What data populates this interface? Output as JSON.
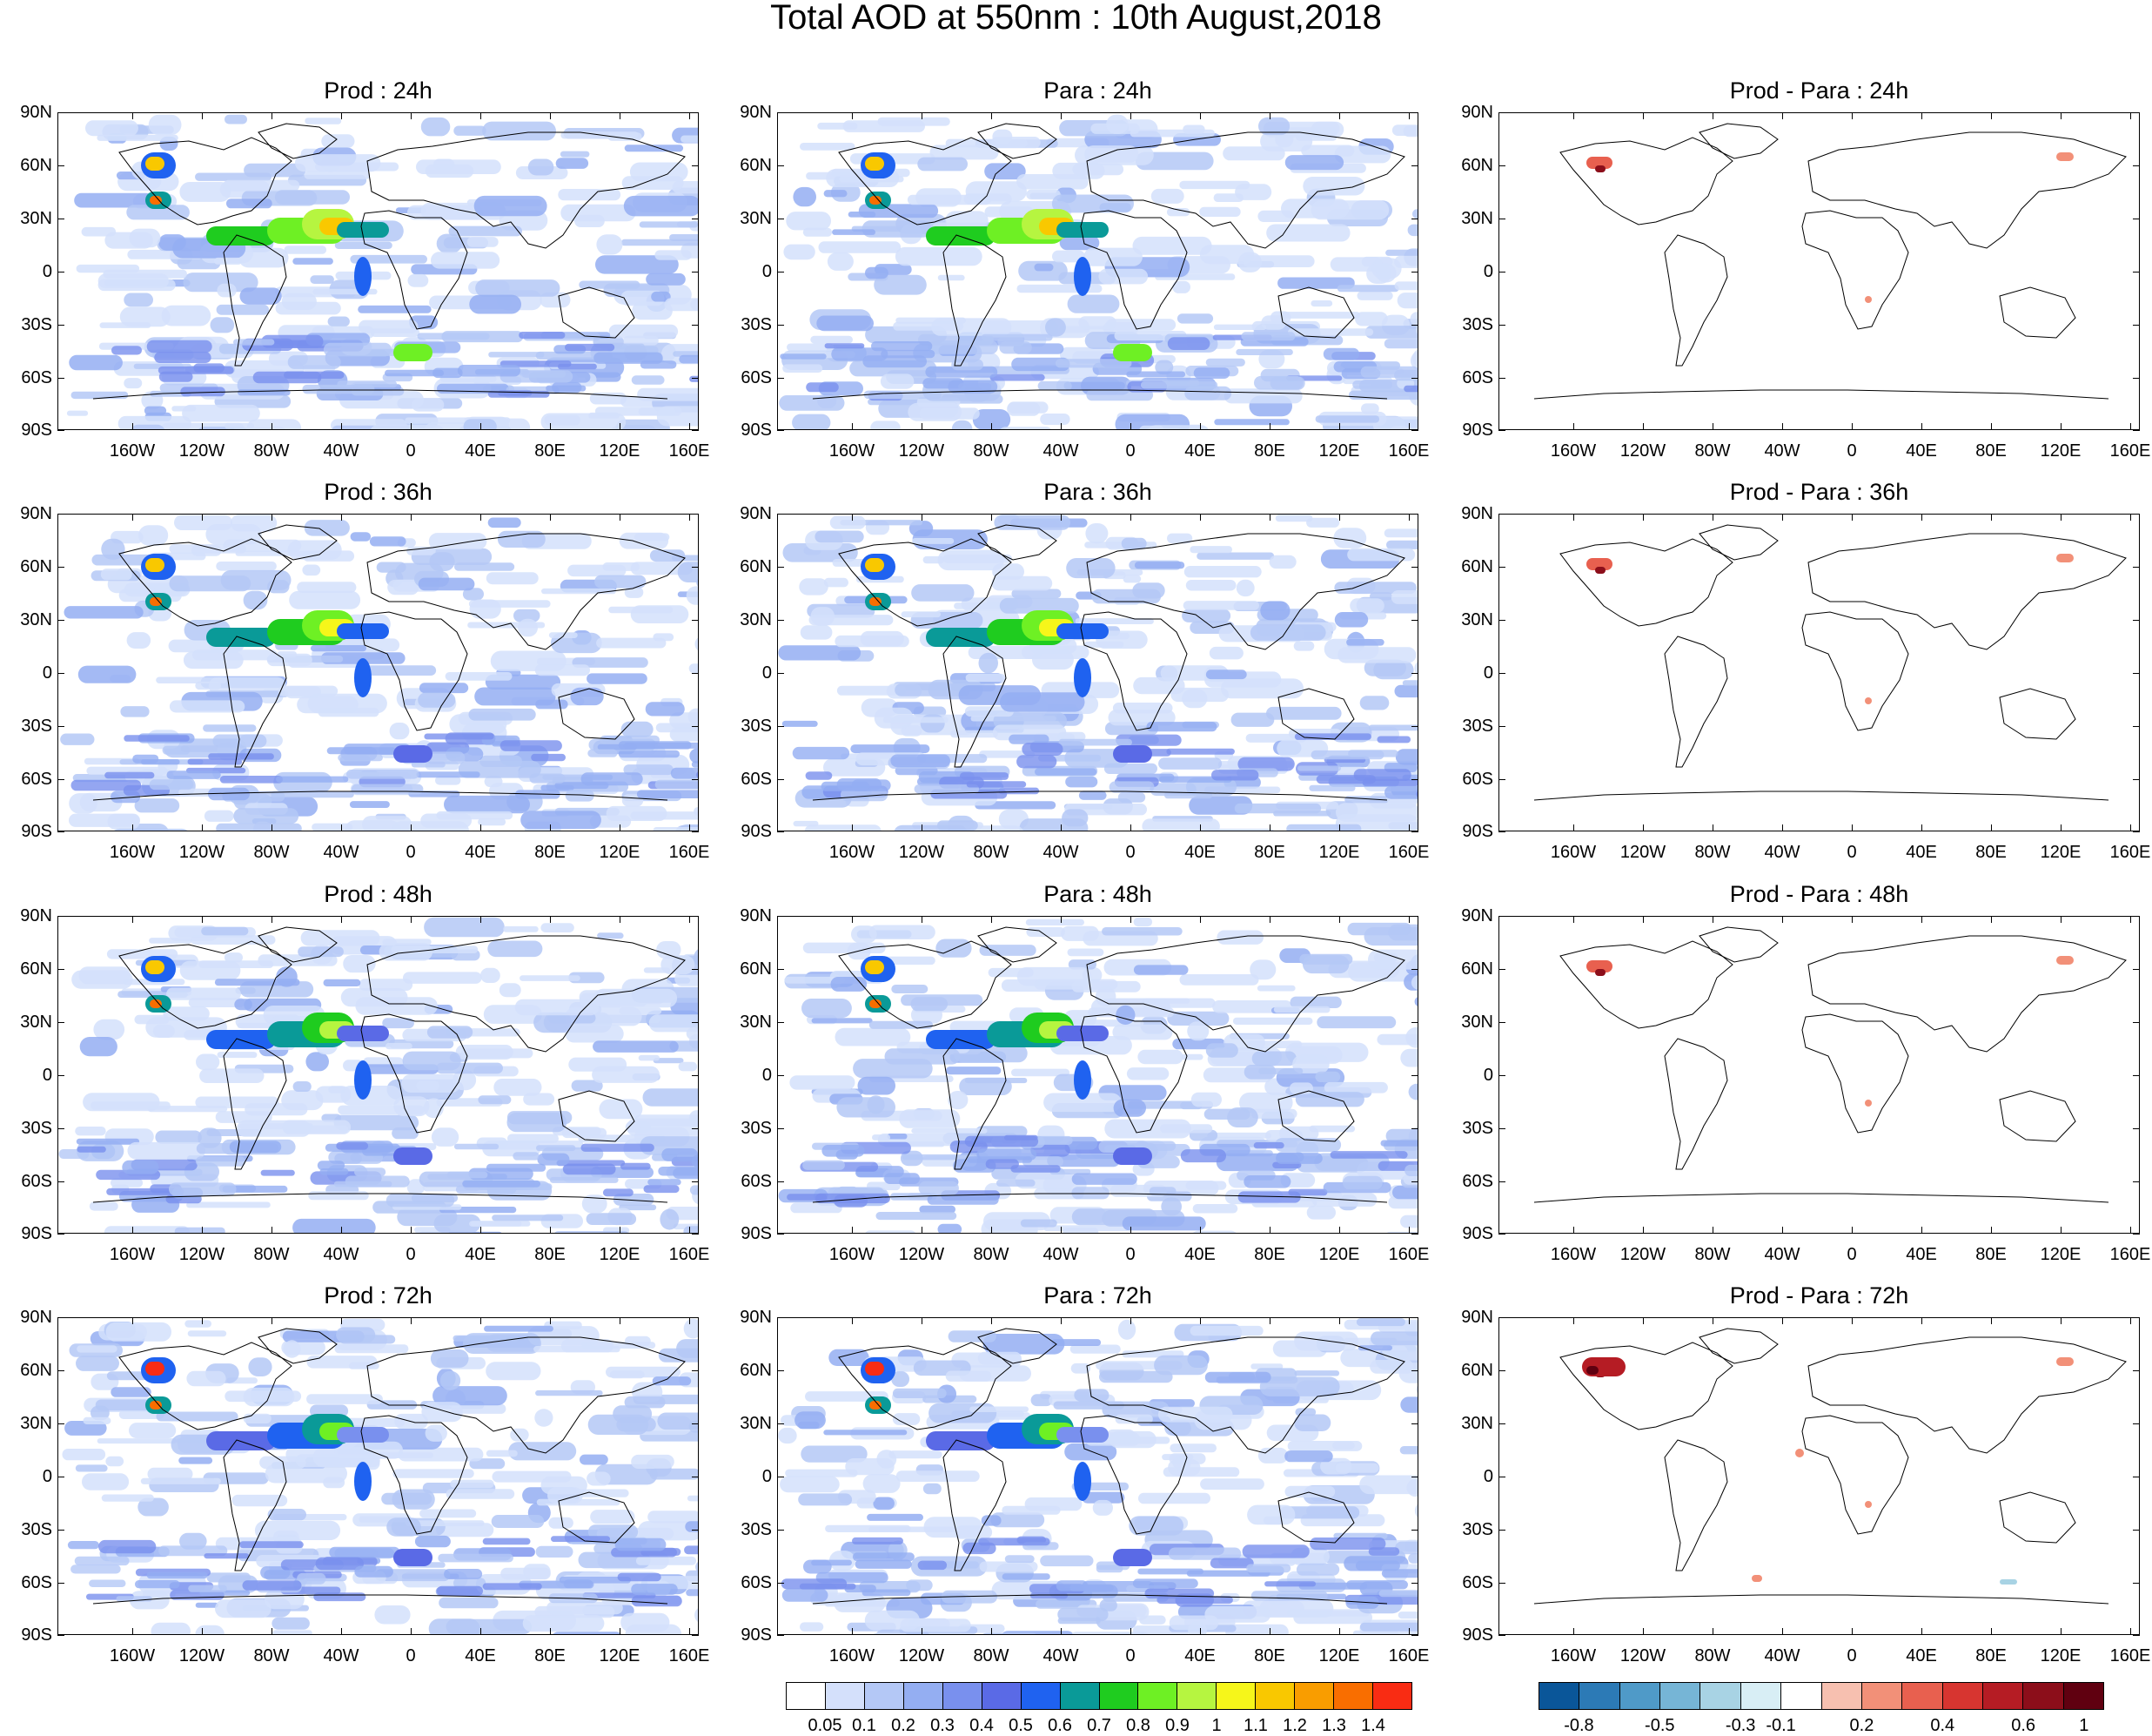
{
  "title": "Total AOD at 550nm : 10th August,2018",
  "panel_titles": [
    [
      "Prod : 24h",
      "Para : 24h",
      "Prod - Para : 24h"
    ],
    [
      "Prod : 36h",
      "Para : 36h",
      "Prod - Para : 36h"
    ],
    [
      "Prod : 48h",
      "Para : 48h",
      "Prod - Para : 48h"
    ],
    [
      "Prod : 72h",
      "Para : 72h",
      "Prod - Para : 72h"
    ]
  ],
  "lat_labels": [
    "90N",
    "60N",
    "30N",
    "0",
    "30S",
    "60S",
    "90S"
  ],
  "lon_labels": [
    "160W",
    "120W",
    "80W",
    "40W",
    "0",
    "40E",
    "80E",
    "120E",
    "160E"
  ],
  "aod_colorbar": {
    "labels": [
      "0.05",
      "0.1",
      "0.2",
      "0.3",
      "0.4",
      "0.5",
      "0.6",
      "0.7",
      "0.8",
      "0.9",
      "1",
      "1.1",
      "1.2",
      "1.3",
      "1.4"
    ],
    "colors": [
      "#ffffff",
      "#d4e0fb",
      "#b4c8f6",
      "#94aef2",
      "#7990ee",
      "#5a6ae6",
      "#1f62f0",
      "#0a9a98",
      "#1fcc1f",
      "#6ef024",
      "#b6f540",
      "#f6f61a",
      "#f9c800",
      "#f99d00",
      "#f96e00",
      "#f92c13"
    ]
  },
  "diff_colorbar": {
    "labels": [
      "-0.8",
      "-0.5",
      "-0.3",
      "-0.1",
      "0.2",
      "0.4",
      "0.6",
      "1"
    ],
    "colors": [
      "#0a5699",
      "#2c7ab6",
      "#4f9ac8",
      "#76b5d6",
      "#a8d3e4",
      "#d8eef5",
      "#ffffff",
      "#f7c0b0",
      "#f29078",
      "#e8604f",
      "#d73530",
      "#b51c24",
      "#8c0e1a",
      "#600010"
    ]
  }
}
